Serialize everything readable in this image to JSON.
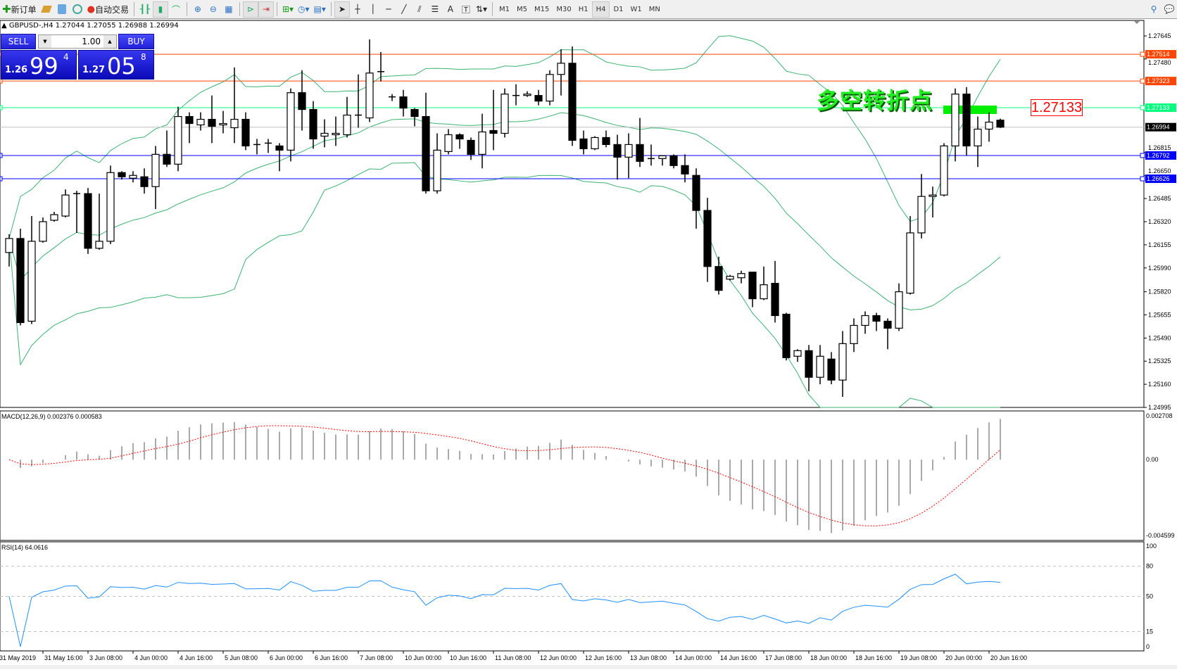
{
  "toolbar": {
    "new_order": "新订单",
    "auto_trading": "自动交易",
    "timeframes": [
      "M1",
      "M5",
      "M15",
      "M30",
      "H1",
      "H4",
      "D1",
      "W1",
      "MN"
    ],
    "active_timeframe": "H4"
  },
  "header": {
    "text": "GBPUSD-,H4  1.27044 1.27055 1.26988 1.26994"
  },
  "one_click": {
    "sell_label": "SELL",
    "buy_label": "BUY",
    "lot": "1.00",
    "bid_small": "1.26",
    "bid_big": "99",
    "bid_pip": "4",
    "ask_small": "1.27",
    "ask_big": "05",
    "ask_pip": "8"
  },
  "annotation": {
    "text": "多空转折点",
    "price_box": "1.27133",
    "color": "#22ee22"
  },
  "chart_data": {
    "type": "candlestick",
    "symbol": "GBPUSD-",
    "timeframe": "H4",
    "ylim": [
      1.24995,
      1.27645
    ],
    "price_ticks": [
      "1.27645",
      "1.27480",
      "1.26815",
      "1.26650",
      "1.26485",
      "1.26320",
      "1.26155",
      "1.25990",
      "1.25820",
      "1.25655",
      "1.25490",
      "1.25325",
      "1.25160",
      "1.24995"
    ],
    "time_labels": [
      "31 May 2019",
      "31 May 16:00",
      "3 Jun 08:00",
      "4 Jun 00:00",
      "4 Jun 16:00",
      "5 Jun 08:00",
      "6 Jun 00:00",
      "6 Jun 16:00",
      "7 Jun 08:00",
      "10 Jun 00:00",
      "10 Jun 16:00",
      "11 Jun 08:00",
      "12 Jun 00:00",
      "12 Jun 16:00",
      "13 Jun 08:00",
      "14 Jun 00:00",
      "14 Jun 16:00",
      "17 Jun 08:00",
      "18 Jun 00:00",
      "18 Jun 16:00",
      "19 Jun 08:00",
      "20 Jun 00:00",
      "20 Jun 16:00"
    ],
    "ohlc": [
      [
        1.261,
        1.2623,
        1.26,
        1.262
      ],
      [
        1.262,
        1.2627,
        1.2558,
        1.256
      ],
      [
        1.2561,
        1.2636,
        1.2559,
        1.2618
      ],
      [
        1.2618,
        1.2635,
        1.2617,
        1.2632
      ],
      [
        1.2633,
        1.2639,
        1.2632,
        1.2637
      ],
      [
        1.2636,
        1.2655,
        1.2635,
        1.2651
      ],
      [
        1.2652,
        1.2654,
        1.2624,
        1.2652
      ],
      [
        1.2652,
        1.2656,
        1.2609,
        1.2613
      ],
      [
        1.2613,
        1.2652,
        1.2612,
        1.2618
      ],
      [
        1.2618,
        1.2672,
        1.2616,
        1.2667
      ],
      [
        1.2667,
        1.2668,
        1.2662,
        1.2664
      ],
      [
        1.2663,
        1.2668,
        1.266,
        1.2665
      ],
      [
        1.2664,
        1.267,
        1.2652,
        1.2657
      ],
      [
        1.2657,
        1.2686,
        1.2641,
        1.268
      ],
      [
        1.268,
        1.2697,
        1.2671,
        1.2673
      ],
      [
        1.2673,
        1.2714,
        1.2668,
        1.2707
      ],
      [
        1.2707,
        1.271,
        1.2688,
        1.2702
      ],
      [
        1.2701,
        1.271,
        1.2697,
        1.2705
      ],
      [
        1.2705,
        1.2722,
        1.2688,
        1.27
      ],
      [
        1.2701,
        1.2711,
        1.2695,
        1.2702
      ],
      [
        1.2699,
        1.2742,
        1.2688,
        1.2705
      ],
      [
        1.2705,
        1.271,
        1.2683,
        1.2686
      ],
      [
        1.2687,
        1.2691,
        1.268,
        1.2687
      ],
      [
        1.2688,
        1.2691,
        1.2681,
        1.2688
      ],
      [
        1.2686,
        1.2688,
        1.2668,
        1.2683
      ],
      [
        1.2683,
        1.2727,
        1.2675,
        1.2724
      ],
      [
        1.2724,
        1.274,
        1.2697,
        1.2712
      ],
      [
        1.2712,
        1.2718,
        1.2684,
        1.2691
      ],
      [
        1.2693,
        1.2705,
        1.2685,
        1.2695
      ],
      [
        1.2694,
        1.2707,
        1.2686,
        1.2695
      ],
      [
        1.2694,
        1.2721,
        1.2692,
        1.2708
      ],
      [
        1.2708,
        1.2737,
        1.2699,
        1.2708
      ],
      [
        1.2706,
        1.2762,
        1.2703,
        1.2738
      ],
      [
        1.2739,
        1.2753,
        1.2732,
        1.2739
      ],
      [
        1.2721,
        1.2723,
        1.2718,
        1.2721
      ],
      [
        1.2721,
        1.2726,
        1.2707,
        1.2713
      ],
      [
        1.2712,
        1.2713,
        1.27,
        1.2707
      ],
      [
        1.2707,
        1.2724,
        1.2652,
        1.2654
      ],
      [
        1.2654,
        1.2695,
        1.2652,
        1.2683
      ],
      [
        1.2682,
        1.2698,
        1.268,
        1.2694
      ],
      [
        1.2694,
        1.2695,
        1.2684,
        1.2691
      ],
      [
        1.269,
        1.2692,
        1.2676,
        1.268
      ],
      [
        1.268,
        1.2709,
        1.267,
        1.2696
      ],
      [
        1.2697,
        1.2726,
        1.2683,
        1.2695
      ],
      [
        1.2695,
        1.2727,
        1.2692,
        1.2723
      ],
      [
        1.2722,
        1.273,
        1.2715,
        1.2722
      ],
      [
        1.2722,
        1.2725,
        1.2721,
        1.2723
      ],
      [
        1.2722,
        1.2726,
        1.2715,
        1.2718
      ],
      [
        1.2718,
        1.274,
        1.2715,
        1.2737
      ],
      [
        1.2737,
        1.2755,
        1.2722,
        1.2745
      ],
      [
        1.2745,
        1.2757,
        1.2686,
        1.269
      ],
      [
        1.2691,
        1.2697,
        1.268,
        1.2684
      ],
      [
        1.2684,
        1.2693,
        1.2683,
        1.2692
      ],
      [
        1.2692,
        1.2697,
        1.2685,
        1.2687
      ],
      [
        1.2687,
        1.2694,
        1.2662,
        1.2678
      ],
      [
        1.2678,
        1.2695,
        1.2663,
        1.2687
      ],
      [
        1.2687,
        1.2706,
        1.2671,
        1.2675
      ],
      [
        1.2677,
        1.2687,
        1.2672,
        1.2677
      ],
      [
        1.2677,
        1.2679,
        1.2672,
        1.2679
      ],
      [
        1.2679,
        1.268,
        1.267,
        1.2672
      ],
      [
        1.2672,
        1.268,
        1.266,
        1.2666
      ],
      [
        1.2665,
        1.267,
        1.2627,
        1.264
      ],
      [
        1.264,
        1.2649,
        1.2589,
        1.26
      ],
      [
        1.26,
        1.2607,
        1.258,
        1.2583
      ],
      [
        1.2591,
        1.2594,
        1.259,
        1.2593
      ],
      [
        1.2592,
        1.2597,
        1.2588,
        1.2595
      ],
      [
        1.2596,
        1.2596,
        1.2571,
        1.2577
      ],
      [
        1.2577,
        1.26,
        1.2576,
        1.2587
      ],
      [
        1.2588,
        1.2604,
        1.256,
        1.2565
      ],
      [
        1.2566,
        1.2567,
        1.2533,
        1.2535
      ],
      [
        1.2536,
        1.2541,
        1.2532,
        1.254
      ],
      [
        1.254,
        1.2544,
        1.2511,
        1.2521
      ],
      [
        1.2521,
        1.2544,
        1.2516,
        1.2536
      ],
      [
        1.2534,
        1.2539,
        1.2516,
        1.2519
      ],
      [
        1.2519,
        1.2554,
        1.2507,
        1.2545
      ],
      [
        1.2545,
        1.2563,
        1.2539,
        1.2558
      ],
      [
        1.2558,
        1.2568,
        1.2552,
        1.2565
      ],
      [
        1.2565,
        1.2567,
        1.2554,
        1.2561
      ],
      [
        1.2561,
        1.2563,
        1.2541,
        1.2556
      ],
      [
        1.2556,
        1.2588,
        1.2554,
        1.2582
      ],
      [
        1.2581,
        1.2636,
        1.258,
        1.2624
      ],
      [
        1.2624,
        1.2666,
        1.262,
        1.265
      ],
      [
        1.265,
        1.2657,
        1.2635,
        1.2651
      ],
      [
        1.2651,
        1.2688,
        1.265,
        1.2686
      ],
      [
        1.2686,
        1.2727,
        1.2675,
        1.2723
      ],
      [
        1.2723,
        1.2728,
        1.2679,
        1.2686
      ],
      [
        1.2686,
        1.2707,
        1.2671,
        1.2698
      ],
      [
        1.2698,
        1.271,
        1.2689,
        1.2703
      ],
      [
        1.27044,
        1.27055,
        1.26988,
        1.26994
      ]
    ],
    "bollinger": {
      "period": 20,
      "deviation": 2,
      "color": "#3cb371"
    },
    "hlines": [
      {
        "price": "1.27514",
        "color": "#ff4500"
      },
      {
        "price": "1.27323",
        "color": "#ff4500"
      },
      {
        "price": "1.27133",
        "color": "#00ff7f"
      },
      {
        "price": "1.26994",
        "color": "#000000",
        "line": "#c0c0c0"
      },
      {
        "price": "1.26792",
        "color": "#0000ff"
      },
      {
        "price": "1.26626",
        "color": "#0000ff"
      }
    ],
    "macd": {
      "label": "MACD(12,26,9) 0.002376 0.000583",
      "ylim": [
        -0.004599,
        0.002708
      ],
      "ticks": [
        "0.002708",
        "0.00",
        "-0.004599"
      ],
      "hist_color": "#a9a9a9",
      "signal_color": "#ff0000"
    },
    "rsi": {
      "label": "RSI(14) 64.0616",
      "ylim": [
        0,
        100
      ],
      "levels": [
        "80",
        "50",
        "15"
      ],
      "ticks": [
        "100",
        "80",
        "50",
        "15",
        "0"
      ],
      "color": "#1e90ff"
    }
  }
}
